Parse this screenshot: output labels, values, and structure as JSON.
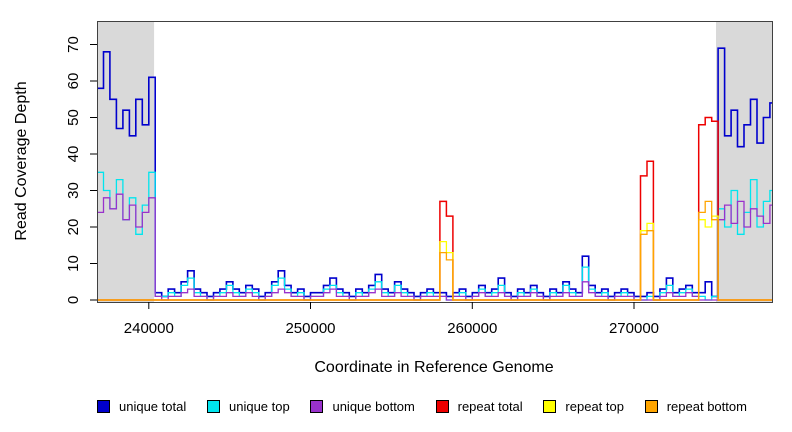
{
  "chart_data": {
    "type": "line",
    "subtype": "step-coverage-plot",
    "title": "",
    "xlabel": "Coordinate in Reference Genome",
    "ylabel": "Read Coverage Depth",
    "xlim": [
      236800,
      278530
    ],
    "ylim": [
      0,
      73
    ],
    "xticks": [
      240000,
      250000,
      260000,
      270000
    ],
    "yticks": [
      0,
      10,
      20,
      30,
      40,
      50,
      60,
      70
    ],
    "grid": false,
    "legend_position": "bottom",
    "shaded_regions": {
      "color": "#d9d9d9",
      "ranges": [
        [
          236800,
          240330
        ],
        [
          275070,
          278530
        ]
      ]
    },
    "x_start": 236800,
    "x_step": 400,
    "n_points": 105,
    "draw_order": [
      "unique total",
      "unique top",
      "unique bottom",
      "repeat total",
      "repeat top",
      "repeat bottom"
    ],
    "series": [
      {
        "name": "unique total",
        "color": "#0000CD",
        "stroke_width": 1.6,
        "values": [
          58,
          68,
          55,
          47,
          52,
          45,
          55,
          48,
          61,
          2,
          1,
          3,
          2,
          5,
          8,
          3,
          2,
          1,
          2,
          3,
          5,
          3,
          2,
          4,
          3,
          1,
          2,
          5,
          8,
          4,
          2,
          3,
          1,
          2,
          2,
          4,
          6,
          3,
          2,
          1,
          3,
          2,
          4,
          7,
          3,
          2,
          5,
          3,
          2,
          1,
          2,
          3,
          2,
          2,
          1,
          2,
          3,
          1,
          2,
          4,
          2,
          3,
          6,
          2,
          1,
          3,
          2,
          4,
          2,
          1,
          3,
          2,
          5,
          3,
          2,
          12,
          4,
          2,
          3,
          1,
          2,
          3,
          2,
          1,
          1,
          2,
          1,
          3,
          6,
          2,
          3,
          4,
          2,
          2,
          5,
          1,
          69,
          45,
          52,
          42,
          48,
          55,
          43,
          50,
          54
        ]
      },
      {
        "name": "unique top",
        "color": "#00E5EE",
        "stroke_width": 1.3,
        "values": [
          35,
          30,
          25,
          33,
          22,
          28,
          18,
          26,
          35,
          1,
          1,
          2,
          1,
          4,
          6,
          2,
          1,
          0,
          1,
          2,
          4,
          2,
          1,
          3,
          2,
          0,
          1,
          4,
          6,
          3,
          1,
          2,
          0,
          1,
          1,
          3,
          4,
          2,
          1,
          0,
          2,
          1,
          3,
          5,
          2,
          1,
          4,
          2,
          1,
          0,
          1,
          2,
          1,
          1,
          0,
          1,
          2,
          0,
          1,
          3,
          1,
          2,
          4,
          1,
          0,
          2,
          1,
          3,
          1,
          0,
          2,
          1,
          4,
          2,
          1,
          9,
          3,
          1,
          2,
          0,
          1,
          2,
          1,
          0,
          0,
          1,
          0,
          2,
          4,
          1,
          2,
          3,
          1,
          1,
          0,
          1,
          25,
          20,
          30,
          18,
          24,
          33,
          20,
          27,
          30
        ]
      },
      {
        "name": "unique bottom",
        "color": "#9932CC",
        "stroke_width": 1.3,
        "values": [
          24,
          28,
          25,
          29,
          22,
          26,
          20,
          24,
          28,
          1,
          0,
          1,
          1,
          2,
          3,
          1,
          1,
          0,
          1,
          1,
          2,
          1,
          1,
          2,
          1,
          0,
          1,
          2,
          3,
          2,
          1,
          1,
          0,
          1,
          1,
          2,
          3,
          1,
          1,
          0,
          1,
          1,
          2,
          3,
          1,
          1,
          2,
          1,
          1,
          0,
          1,
          1,
          1,
          1,
          0,
          1,
          1,
          0,
          1,
          2,
          1,
          1,
          2,
          1,
          0,
          1,
          1,
          2,
          1,
          0,
          1,
          1,
          2,
          1,
          1,
          5,
          2,
          1,
          1,
          0,
          1,
          1,
          1,
          0,
          0,
          0,
          0,
          1,
          2,
          1,
          1,
          2,
          1,
          0,
          0,
          0,
          22,
          26,
          21,
          27,
          20,
          25,
          23,
          21,
          26
        ]
      },
      {
        "name": "repeat total",
        "color": "#EE0000",
        "stroke_width": 1.5,
        "fill_value": 0,
        "values_sparse": {
          "53": 27,
          "54": 23,
          "84": 34,
          "85": 38,
          "93": 48,
          "94": 50,
          "95": 49
        }
      },
      {
        "name": "repeat top",
        "color": "#FFFF00",
        "stroke_width": 1.3,
        "fill_value": 0,
        "values_sparse": {
          "53": 16,
          "54": 13,
          "84": 19,
          "85": 21,
          "93": 22,
          "94": 20,
          "95": 23
        }
      },
      {
        "name": "repeat bottom",
        "color": "#FFA500",
        "stroke_width": 1.3,
        "fill_value": 0,
        "values_sparse": {
          "53": 13,
          "54": 11,
          "84": 18,
          "85": 19,
          "93": 24,
          "94": 27,
          "95": 22
        }
      }
    ]
  },
  "legend": {
    "items": [
      {
        "label": "unique total",
        "color": "#0000CD"
      },
      {
        "label": "unique top",
        "color": "#00E5EE"
      },
      {
        "label": "unique bottom",
        "color": "#9932CC"
      },
      {
        "label": "repeat total",
        "color": "#EE0000"
      },
      {
        "label": "repeat top",
        "color": "#FFFF00"
      },
      {
        "label": "repeat bottom",
        "color": "#FFA500"
      }
    ]
  }
}
